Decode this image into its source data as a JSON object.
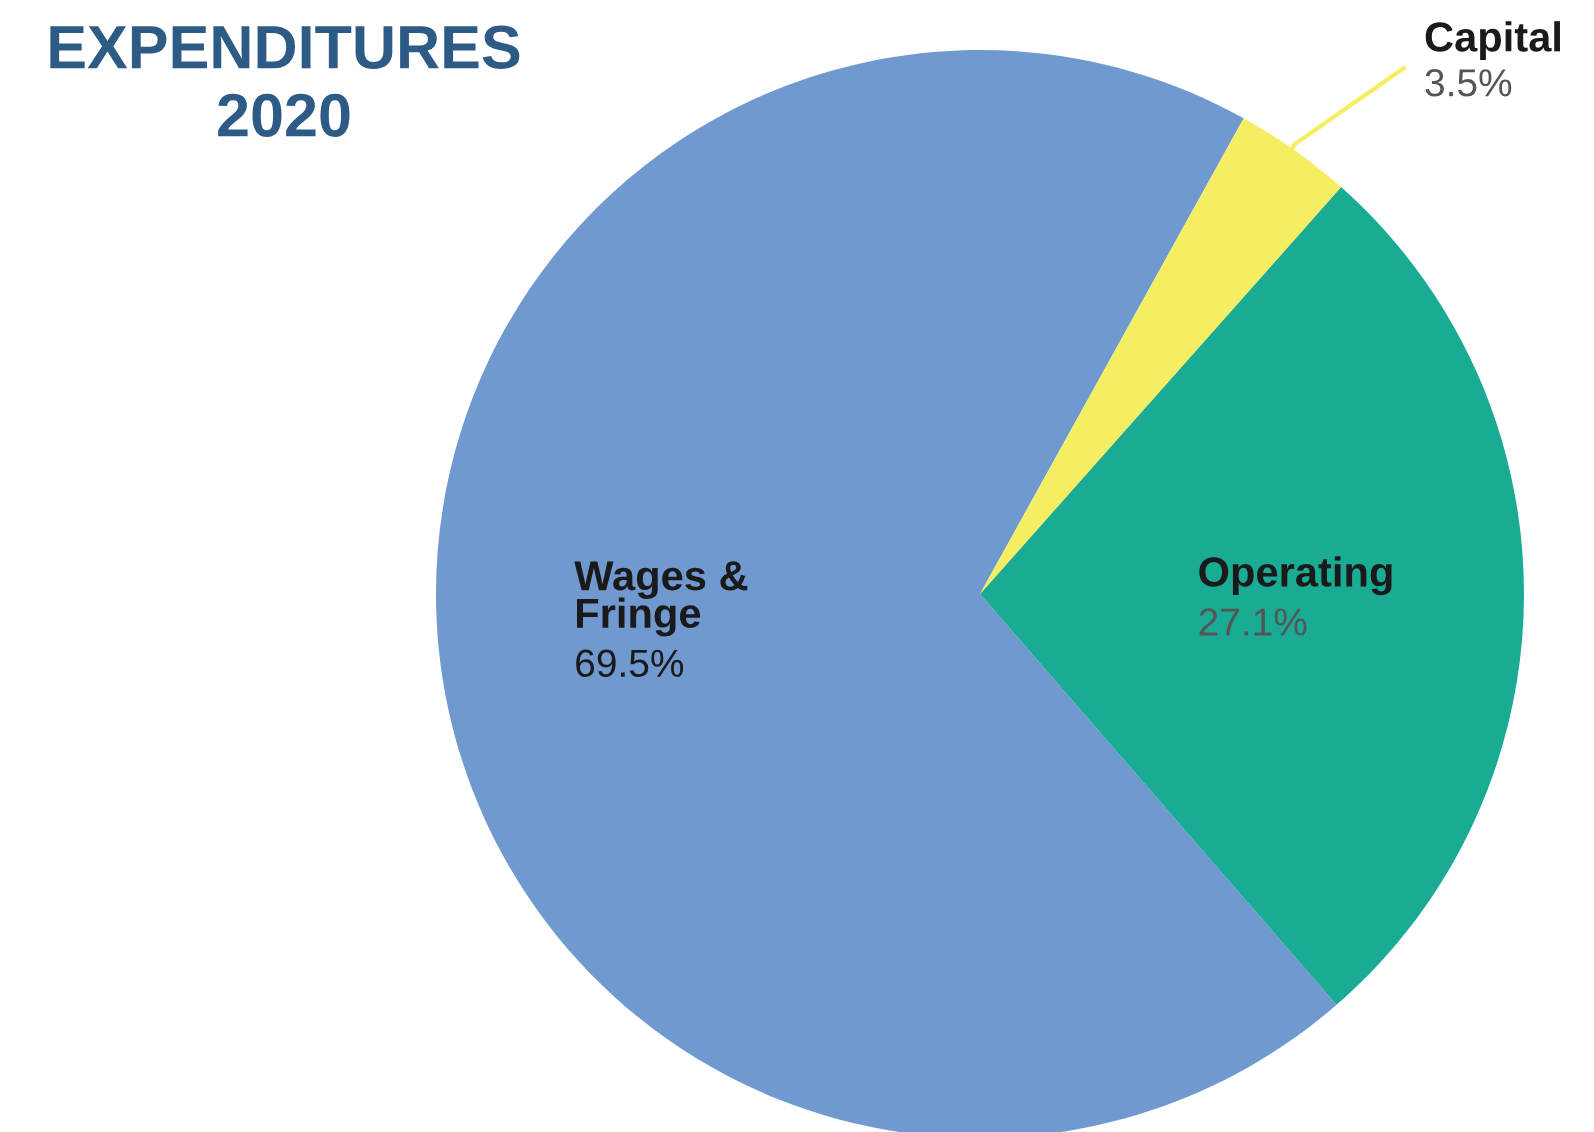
{
  "chart_data": {
    "type": "pie",
    "title": "EXPENDITURES\n2020",
    "categories": [
      "Wages &\nFringe",
      "Operating",
      "Capital"
    ],
    "values": [
      69.5,
      27.1,
      3.5
    ],
    "value_labels": [
      "69.5%",
      "27.1%",
      "3.5%"
    ],
    "colors": [
      "#7099cf",
      "#1aab94",
      "#f5ee62"
    ]
  }
}
